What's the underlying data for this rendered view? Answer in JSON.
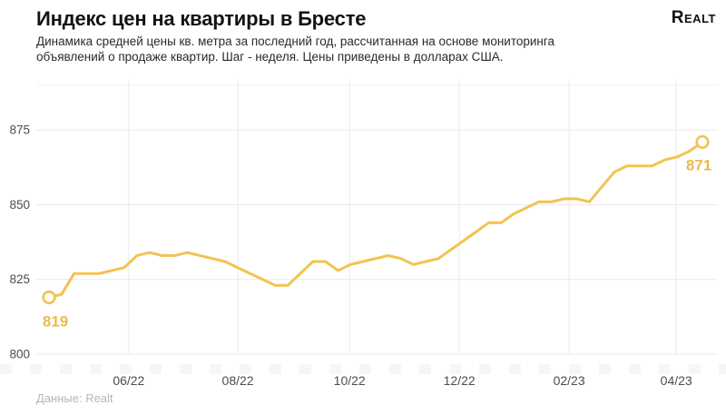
{
  "header": {
    "title": "Индекс цен на квартиры в Бресте",
    "subtitle": "Динамика средней цены кв. метра за последний год, рассчитанная на основе мониторинга объявлений о продаже квартир. Шаг - неделя. Цены приведены в долларах США.",
    "logo": "Realt"
  },
  "footer": {
    "source": "Данные: Realt"
  },
  "colors": {
    "line": "#F2C34F",
    "point_label": "#ECBB47",
    "grid": "#EAEAEA",
    "grid_top": "#F0F0F0",
    "axis_text": "#4D4D4D",
    "marker_fill": "#FFFFFF",
    "background": "#FFFFFF"
  },
  "chart_data": {
    "type": "line",
    "title": "Индекс цен на квартиры в Бресте",
    "xlabel": "",
    "ylabel": "",
    "ylim": [
      800,
      890
    ],
    "y_ticks": [
      800,
      825,
      850,
      875
    ],
    "x_ticks": [
      {
        "label": "06/22",
        "pos": 0.122
      },
      {
        "label": "08/22",
        "pos": 0.289
      },
      {
        "label": "10/22",
        "pos": 0.46
      },
      {
        "label": "12/22",
        "pos": 0.628
      },
      {
        "label": "02/23",
        "pos": 0.796
      },
      {
        "label": "04/23",
        "pos": 0.96
      }
    ],
    "values": [
      819,
      820,
      827,
      827,
      827,
      828,
      829,
      833,
      834,
      833,
      833,
      834,
      833,
      832,
      831,
      829,
      827,
      825,
      823,
      823,
      827,
      831,
      831,
      828,
      830,
      831,
      832,
      833,
      832,
      830,
      831,
      832,
      835,
      838,
      841,
      844,
      844,
      847,
      849,
      851,
      851,
      852,
      852,
      851,
      856,
      861,
      863,
      863,
      863,
      865,
      866,
      868,
      871
    ],
    "first_point": {
      "label": "819",
      "value": 819
    },
    "last_point": {
      "label": "871",
      "value": 871
    },
    "grid": true,
    "legend": false
  }
}
